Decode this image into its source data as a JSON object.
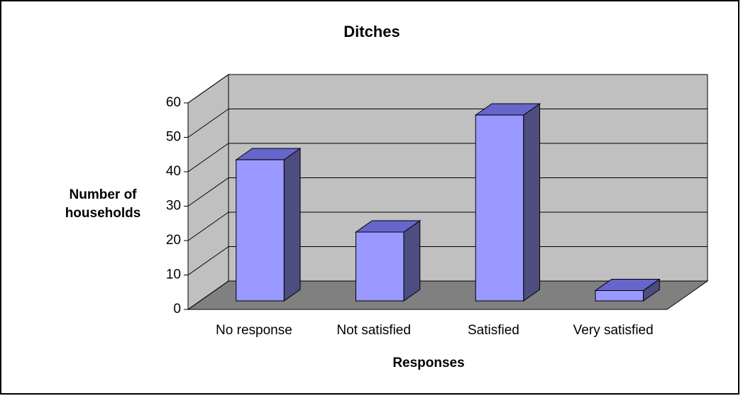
{
  "chart_data": {
    "type": "bar3d",
    "title": "Ditches",
    "x_label": "Responses",
    "y_label": "Number of households",
    "categories": [
      "No response",
      "Not satisfied",
      "Satisfied",
      "Very satisfied"
    ],
    "values": [
      41,
      20,
      54,
      3
    ],
    "color": "#9999ff",
    "ylim": [
      0,
      60
    ],
    "yticks": [
      0,
      10,
      20,
      30,
      40,
      50,
      60
    ],
    "grid": true
  }
}
